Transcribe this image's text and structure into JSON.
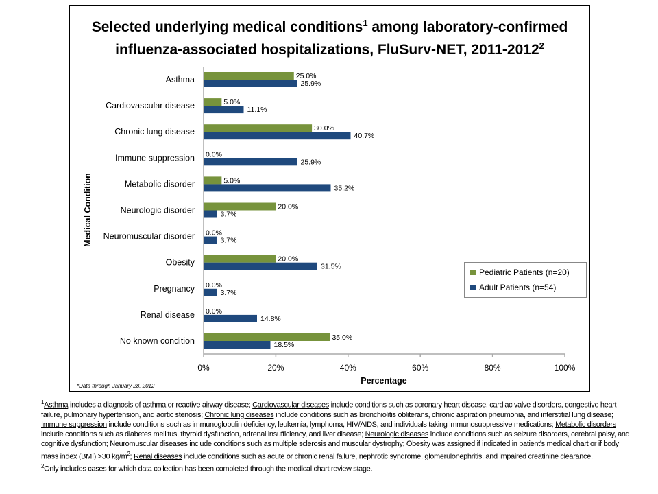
{
  "chart_data": {
    "type": "bar",
    "orientation": "horizontal",
    "title": "Selected underlying medical conditions",
    "title_sup": "1",
    "title_rest": " among laboratory-confirmed influenza-associated hospitalizations, FluSurv-NET, 2011-2012",
    "title_sup2": "2",
    "xlabel": "Percentage",
    "ylabel": "Medical Condition",
    "xlim": [
      0,
      100
    ],
    "xticks": [
      "0%",
      "20%",
      "40%",
      "60%",
      "80%",
      "100%"
    ],
    "grid": false,
    "legend_placement": "right",
    "categories": [
      "Asthma",
      "Cardiovascular disease",
      "Chronic lung disease",
      "Immune suppression",
      "Metabolic disorder",
      "Neurologic disorder",
      "Neuromuscular disorder",
      "Obesity",
      "Pregnancy",
      "Renal disease",
      "No known condition"
    ],
    "series": [
      {
        "name": "Pediatric Patients (n=20)",
        "color": "#77933C",
        "values": [
          25.0,
          5.0,
          30.0,
          0.0,
          5.0,
          20.0,
          0.0,
          20.0,
          0.0,
          0.0,
          35.0
        ]
      },
      {
        "name": "Adult Patients (n=54)",
        "color": "#1F497D",
        "values": [
          25.9,
          11.1,
          40.7,
          25.9,
          35.2,
          3.7,
          3.7,
          31.5,
          3.7,
          14.8,
          18.5
        ]
      }
    ],
    "note": "*Data through January 28, 2012"
  },
  "footnotes": [
    {
      "sup": "1",
      "segments": [
        {
          "u": true,
          "t": "Asthma"
        },
        {
          "t": " includes a diagnosis of asthma or reactive airway disease; "
        },
        {
          "u": true,
          "t": "Cardiovascular diseases"
        },
        {
          "t": " include conditions such as coronary heart disease, cardiac valve disorders, congestive heart failure, pulmonary hypertension, and aortic stenosis; "
        },
        {
          "u": true,
          "t": "Chronic lung diseases"
        },
        {
          "t": " include conditions such as bronchiolitis obliterans, chronic aspiration pneumonia, and interstitial lung disease; "
        },
        {
          "u": true,
          "t": "Immune suppression"
        },
        {
          "t": " include conditions such as immunoglobulin deficiency, leukemia, lymphoma, HIV/AIDS,  and individuals taking immunosuppressive medications; "
        },
        {
          "u": true,
          "t": "Metabolic disorders"
        },
        {
          "t": " include conditions such as diabetes mellitus, thyroid dysfunction, adrenal insufficiency, and liver disease; "
        },
        {
          "u": true,
          "t": "Neurologic diseases"
        },
        {
          "t": " include conditions such as seizure disorders, cerebral palsy, and cognitive dysfunction; "
        },
        {
          "u": true,
          "t": "Neuromuscular diseases"
        },
        {
          "t": " include conditions such as multiple sclerosis and muscular dystrophy; "
        },
        {
          "u": true,
          "t": "Obesity"
        },
        {
          "t": " was assigned if indicated in patient's medical chart or if body mass index (BMI)  >30 kg/m"
        },
        {
          "sup": true,
          "t": "2"
        },
        {
          "t": "; "
        },
        {
          "u": true,
          "t": "Renal diseases"
        },
        {
          "t": " include conditions such as acute or chronic renal failure, nephrotic syndrome, glomerulonephritis, and impaired creatinine clearance."
        }
      ]
    },
    {
      "sup": "2",
      "segments": [
        {
          "t": "Only includes cases for which data collection has been completed through the medical chart review stage."
        }
      ]
    }
  ]
}
